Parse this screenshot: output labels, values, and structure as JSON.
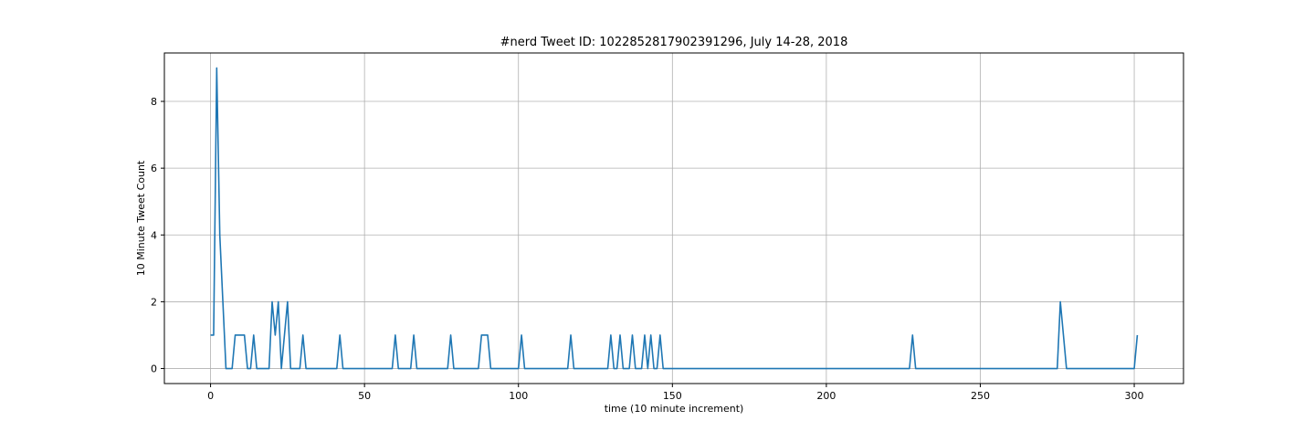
{
  "chart_data": {
    "type": "line",
    "title": "#nerd Tweet ID: 1022852817902391296, July 14-28, 2018",
    "xlabel": "time (10 minute increment)",
    "ylabel": "10 Minute Tweet Count",
    "xlim": [
      -15,
      316
    ],
    "ylim": [
      -0.45,
      9.45
    ],
    "xticks": [
      0,
      50,
      100,
      150,
      200,
      250,
      300
    ],
    "yticks": [
      0,
      2,
      4,
      6,
      8
    ],
    "grid": true,
    "line_color": "#1f77b4",
    "series": [
      {
        "name": "",
        "points": [
          [
            0,
            1
          ],
          [
            1,
            1
          ],
          [
            2,
            9
          ],
          [
            3,
            4
          ],
          [
            4,
            2
          ],
          [
            5,
            0
          ],
          [
            6,
            0
          ],
          [
            7,
            0
          ],
          [
            8,
            1
          ],
          [
            9,
            1
          ],
          [
            10,
            1
          ],
          [
            11,
            1
          ],
          [
            12,
            0
          ],
          [
            13,
            0
          ],
          [
            14,
            1
          ],
          [
            15,
            0
          ],
          [
            16,
            0
          ],
          [
            17,
            0
          ],
          [
            18,
            0
          ],
          [
            19,
            0
          ],
          [
            20,
            2
          ],
          [
            21,
            1
          ],
          [
            22,
            2
          ],
          [
            23,
            0
          ],
          [
            24,
            1
          ],
          [
            25,
            2
          ],
          [
            26,
            0
          ],
          [
            27,
            0
          ],
          [
            28,
            0
          ],
          [
            29,
            0
          ],
          [
            30,
            1
          ],
          [
            31,
            0
          ],
          [
            41,
            0
          ],
          [
            42,
            1
          ],
          [
            43,
            0
          ],
          [
            59,
            0
          ],
          [
            60,
            1
          ],
          [
            61,
            0
          ],
          [
            65,
            0
          ],
          [
            66,
            1
          ],
          [
            67,
            0
          ],
          [
            77,
            0
          ],
          [
            78,
            1
          ],
          [
            79,
            0
          ],
          [
            87,
            0
          ],
          [
            88,
            1
          ],
          [
            89,
            1
          ],
          [
            90,
            1
          ],
          [
            91,
            0
          ],
          [
            100,
            0
          ],
          [
            101,
            1
          ],
          [
            102,
            0
          ],
          [
            116,
            0
          ],
          [
            117,
            1
          ],
          [
            118,
            0
          ],
          [
            129,
            0
          ],
          [
            130,
            1
          ],
          [
            131,
            0
          ],
          [
            132,
            0
          ],
          [
            133,
            1
          ],
          [
            134,
            0
          ],
          [
            136,
            0
          ],
          [
            137,
            1
          ],
          [
            138,
            0
          ],
          [
            140,
            0
          ],
          [
            141,
            1
          ],
          [
            142,
            0
          ],
          [
            143,
            1
          ],
          [
            144,
            0
          ],
          [
            145,
            0
          ],
          [
            146,
            1
          ],
          [
            147,
            0
          ],
          [
            227,
            0
          ],
          [
            228,
            1
          ],
          [
            229,
            0
          ],
          [
            275,
            0
          ],
          [
            276,
            2
          ],
          [
            277,
            1
          ],
          [
            278,
            0
          ],
          [
            300,
            0
          ],
          [
            301,
            1
          ]
        ]
      }
    ]
  }
}
